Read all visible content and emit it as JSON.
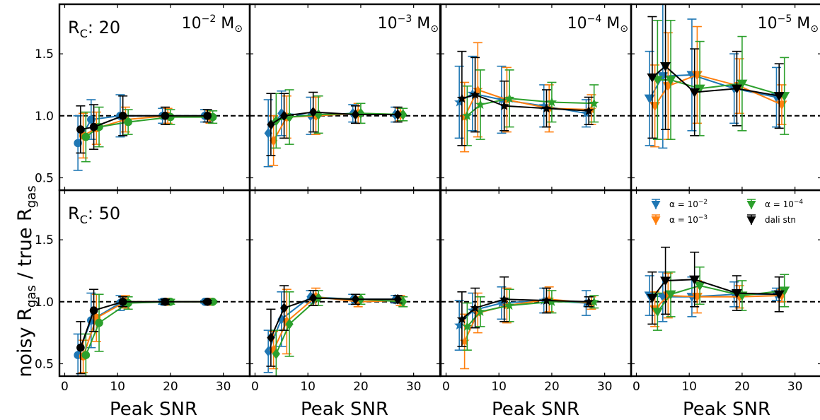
{
  "figure": {
    "ylabel_main": "noisy R",
    "ylabel_sub1": "gas",
    "ylabel_mid": " / true R",
    "ylabel_sub2": "gas",
    "xlabel": "Peak SNR"
  },
  "colors": {
    "alpha_1e-2": "#1f77b4",
    "alpha_1e-3": "#ff7f0e",
    "alpha_1e-4": "#2ca02c",
    "dali": "#000000",
    "reference_line": "#000000"
  },
  "rows": [
    {
      "label_main": "R",
      "label_sub": "C",
      "label_rest": ": 20"
    },
    {
      "label_main": "R",
      "label_sub": "C",
      "label_rest": ": 50"
    }
  ],
  "columns": [
    {
      "base": "10",
      "exp": "−2",
      "unit": " M",
      "sun": "⊙",
      "marker": "circle"
    },
    {
      "base": "10",
      "exp": "−3",
      "unit": " M",
      "sun": "⊙",
      "marker": "diamond"
    },
    {
      "base": "10",
      "exp": "−4",
      "unit": " M",
      "sun": "⊙",
      "marker": "star"
    },
    {
      "base": "10",
      "exp": "−5",
      "unit": " M",
      "sun": "⊙",
      "marker": "triangle-down"
    }
  ],
  "legend": {
    "placement": "top-right of bottom-right panel",
    "entries": [
      {
        "prefix": "α = 10",
        "exp": "−2",
        "series": "alpha_1e-2"
      },
      {
        "prefix": "α = 10",
        "exp": "−4",
        "series": "alpha_1e-4"
      },
      {
        "prefix": "α = 10",
        "exp": "−3",
        "series": "alpha_1e-3"
      },
      {
        "text": "dali stn",
        "series": "dali"
      }
    ]
  },
  "chart_data": {
    "type": "scatter",
    "layout": "2x4 grid of panels with shared axes",
    "xlim": [
      -1,
      35
    ],
    "xticks": [
      0,
      10,
      20,
      30
    ],
    "ylim": [
      0.4,
      1.9
    ],
    "yticks": [
      0.5,
      1.0,
      1.5
    ],
    "reference_line_y": 1.0,
    "x": [
      3,
      5.5,
      11,
      19,
      27
    ],
    "x_offsets": {
      "alpha_1e-2": -0.5,
      "alpha_1e-3": 0.5,
      "alpha_1e-4": 1.0,
      "dali": 0
    },
    "panels": [
      {
        "row": 0,
        "col": 0,
        "series": [
          {
            "name": "α = 10^-2",
            "key": "alpha_1e-2",
            "y": [
              0.78,
              0.97,
              1.0,
              1.0,
              1.0
            ],
            "err": [
              0.22,
              0.16,
              0.17,
              0.06,
              0.05
            ]
          },
          {
            "name": "α = 10^-3",
            "key": "alpha_1e-3",
            "y": [
              0.84,
              0.9,
              0.97,
              1.0,
              0.99
            ],
            "err": [
              0.18,
              0.13,
              0.1,
              0.06,
              0.05
            ]
          },
          {
            "name": "α = 10^-4",
            "key": "alpha_1e-4",
            "y": [
              0.83,
              0.91,
              0.95,
              0.99,
              0.99
            ],
            "err": [
              0.2,
              0.16,
              0.1,
              0.06,
              0.05
            ]
          },
          {
            "name": "dali stn",
            "key": "dali",
            "y": [
              0.89,
              0.91,
              1.0,
              1.0,
              1.0
            ],
            "err": [
              0.19,
              0.18,
              0.16,
              0.07,
              0.05
            ]
          }
        ]
      },
      {
        "row": 0,
        "col": 1,
        "series": [
          {
            "name": "α = 10^-2",
            "key": "alpha_1e-2",
            "y": [
              0.86,
              1.02,
              1.0,
              1.02,
              1.01
            ],
            "err": [
              0.27,
              0.18,
              0.15,
              0.07,
              0.06
            ]
          },
          {
            "name": "α = 10^-3",
            "key": "alpha_1e-3",
            "y": [
              0.8,
              0.99,
              1.0,
              1.02,
              1.01
            ],
            "err": [
              0.2,
              0.17,
              0.15,
              0.08,
              0.05
            ]
          },
          {
            "name": "α = 10^-4",
            "key": "alpha_1e-4",
            "y": [
              0.96,
              0.99,
              1.01,
              1.02,
              1.01
            ],
            "err": [
              0.22,
              0.22,
              0.15,
              0.08,
              0.05
            ]
          },
          {
            "name": "dali stn",
            "key": "dali",
            "y": [
              0.93,
              1.0,
              1.03,
              1.01,
              1.01
            ],
            "err": [
              0.25,
              0.18,
              0.16,
              0.07,
              0.06
            ]
          }
        ]
      },
      {
        "row": 0,
        "col": 2,
        "series": [
          {
            "name": "α = 10^-2",
            "key": "alpha_1e-2",
            "y": [
              1.11,
              1.18,
              1.13,
              1.08,
              1.02
            ],
            "err": [
              0.29,
              0.3,
              0.27,
              0.17,
              0.11
            ]
          },
          {
            "name": "α = 10^-3",
            "key": "alpha_1e-3",
            "y": [
              0.99,
              1.21,
              1.13,
              1.06,
              1.05
            ],
            "err": [
              0.28,
              0.38,
              0.26,
              0.19,
              0.12
            ]
          },
          {
            "name": "α = 10^-4",
            "key": "alpha_1e-4",
            "y": [
              1.0,
              1.09,
              1.14,
              1.11,
              1.1
            ],
            "err": [
              0.24,
              0.28,
              0.23,
              0.16,
              0.15
            ]
          },
          {
            "name": "dali stn",
            "key": "dali",
            "y": [
              1.14,
              1.17,
              1.08,
              1.06,
              1.04
            ],
            "err": [
              0.38,
              0.3,
              0.2,
              0.15,
              0.11
            ]
          }
        ]
      },
      {
        "row": 0,
        "col": 3,
        "series": [
          {
            "name": "α = 10^-2",
            "key": "alpha_1e-2",
            "y": [
              1.14,
              1.32,
              1.33,
              1.22,
              1.15
            ],
            "err": [
              0.38,
              0.58,
              0.45,
              0.28,
              0.24
            ]
          },
          {
            "name": "α = 10^-3",
            "key": "alpha_1e-3",
            "y": [
              1.08,
              1.24,
              1.33,
              1.24,
              1.09
            ],
            "err": [
              0.33,
              0.43,
              0.39,
              0.22,
              0.16
            ]
          },
          {
            "name": "α = 10^-4",
            "key": "alpha_1e-4",
            "y": [
              1.29,
              1.29,
              1.22,
              1.26,
              1.16
            ],
            "err": [
              0.48,
              0.48,
              0.38,
              0.38,
              0.31
            ]
          },
          {
            "name": "dali stn",
            "key": "dali",
            "y": [
              1.31,
              1.4,
              1.19,
              1.22,
              1.16
            ],
            "err": [
              0.49,
              0.51,
              0.35,
              0.3,
              0.26
            ]
          }
        ]
      },
      {
        "row": 1,
        "col": 0,
        "series": [
          {
            "name": "α = 10^-2",
            "key": "alpha_1e-2",
            "y": [
              0.57,
              0.85,
              0.99,
              1.0,
              1.0
            ],
            "err": [
              0.17,
              0.22,
              0.06,
              0.02,
              0.01
            ]
          },
          {
            "name": "α = 10^-3",
            "key": "alpha_1e-3",
            "y": [
              0.56,
              0.87,
              1.0,
              1.0,
              1.0
            ],
            "err": [
              0.13,
              0.19,
              0.05,
              0.02,
              0.01
            ]
          },
          {
            "name": "α = 10^-4",
            "key": "alpha_1e-4",
            "y": [
              0.57,
              0.83,
              0.99,
              1.0,
              1.0
            ],
            "err": [
              0.17,
              0.23,
              0.05,
              0.02,
              0.01
            ]
          },
          {
            "name": "dali stn",
            "key": "dali",
            "y": [
              0.63,
              0.93,
              1.0,
              1.0,
              1.0
            ],
            "err": [
              0.21,
              0.17,
              0.04,
              0.02,
              0.01
            ]
          }
        ]
      },
      {
        "row": 1,
        "col": 1,
        "series": [
          {
            "name": "α = 10^-2",
            "key": "alpha_1e-2",
            "y": [
              0.6,
              0.86,
              1.04,
              1.02,
              1.02
            ],
            "err": [
              0.17,
              0.22,
              0.05,
              0.04,
              0.03
            ]
          },
          {
            "name": "α = 10^-3",
            "key": "alpha_1e-3",
            "y": [
              0.61,
              0.84,
              1.04,
              1.0,
              1.01
            ],
            "err": [
              0.15,
              0.26,
              0.07,
              0.04,
              0.04
            ]
          },
          {
            "name": "α = 10^-4",
            "key": "alpha_1e-4",
            "y": [
              0.58,
              0.82,
              1.03,
              1.02,
              1.0
            ],
            "err": [
              0.19,
              0.26,
              0.06,
              0.04,
              0.04
            ]
          },
          {
            "name": "dali stn",
            "key": "dali",
            "y": [
              0.71,
              0.95,
              1.03,
              1.02,
              1.02
            ],
            "err": [
              0.23,
              0.18,
              0.06,
              0.04,
              0.03
            ]
          }
        ]
      },
      {
        "row": 1,
        "col": 2,
        "series": [
          {
            "name": "α = 10^-2",
            "key": "alpha_1e-2",
            "y": [
              0.81,
              0.93,
              0.99,
              1.01,
              0.99
            ],
            "err": [
              0.2,
              0.14,
              0.13,
              0.1,
              0.1
            ]
          },
          {
            "name": "α = 10^-3",
            "key": "alpha_1e-3",
            "y": [
              0.68,
              0.91,
              0.97,
              1.02,
              0.99
            ],
            "err": [
              0.22,
              0.16,
              0.14,
              0.1,
              0.05
            ]
          },
          {
            "name": "α = 10^-4",
            "key": "alpha_1e-4",
            "y": [
              0.8,
              0.92,
              0.97,
              1.0,
              1.0
            ],
            "err": [
              0.19,
              0.12,
              0.13,
              0.09,
              0.05
            ]
          },
          {
            "name": "dali stn",
            "key": "dali",
            "y": [
              0.86,
              0.95,
              1.02,
              1.01,
              1.0
            ],
            "err": [
              0.22,
              0.16,
              0.18,
              0.1,
              0.04
            ]
          }
        ]
      },
      {
        "row": 1,
        "col": 3,
        "series": [
          {
            "name": "α = 10^-2",
            "key": "alpha_1e-2",
            "y": [
              1.05,
              1.04,
              1.04,
              1.06,
              1.06
            ],
            "err": [
              0.16,
              0.2,
              0.16,
              0.1,
              0.05
            ]
          },
          {
            "name": "α = 10^-3",
            "key": "alpha_1e-3",
            "y": [
              0.94,
              1.05,
              1.04,
              1.04,
              1.05
            ],
            "err": [
              0.14,
              0.18,
              0.13,
              0.09,
              0.05
            ]
          },
          {
            "name": "α = 10^-4",
            "key": "alpha_1e-4",
            "y": [
              0.92,
              1.06,
              1.13,
              1.05,
              1.09
            ],
            "err": [
              0.15,
              0.18,
              0.15,
              0.12,
              0.13
            ]
          },
          {
            "name": "dali stn",
            "key": "dali",
            "y": [
              1.03,
              1.17,
              1.18,
              1.07,
              1.06
            ],
            "err": [
              0.21,
              0.27,
              0.22,
              0.14,
              0.14
            ]
          }
        ]
      }
    ]
  }
}
